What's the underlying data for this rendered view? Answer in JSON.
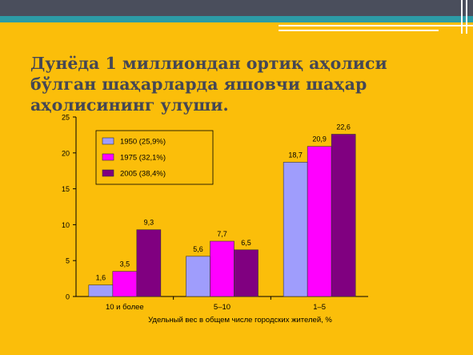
{
  "slide": {
    "title_lines": [
      "Дунёда 1 миллиондан ортиқ аҳолиси",
      "бўлган шаҳарларда яшовчи шаҳар",
      "аҳолисининг улуши."
    ]
  },
  "colors": {
    "background": "#fbbe0a",
    "topbar": "#4a4e5c",
    "accent": "#2c9ba6",
    "title": "#454754"
  },
  "chart_data": {
    "type": "bar",
    "categories": [
      "10 и более",
      "5–10",
      "1–5"
    ],
    "series": [
      {
        "name": "1950 (25,9%)",
        "values": [
          1.6,
          5.6,
          18.7
        ],
        "labels": [
          "1,6",
          "5,6",
          "18,7"
        ],
        "color": "#9f9dfc"
      },
      {
        "name": "1975 (32,1%)",
        "values": [
          3.5,
          7.7,
          20.9
        ],
        "labels": [
          "3,5",
          "7,7",
          "20,9"
        ],
        "color": "#ff00ff"
      },
      {
        "name": "2005 (38,4%)",
        "values": [
          9.3,
          6.5,
          22.6
        ],
        "labels": [
          "9,3",
          "6,5",
          "22,6"
        ],
        "color": "#800080"
      }
    ],
    "y_ticks": [
      "0",
      "5",
      "10",
      "15",
      "20",
      "25"
    ],
    "ylim": [
      0,
      25
    ],
    "xlabel": "Удельный вес в общем числе городских жителей, %",
    "ylabel": "",
    "title": "",
    "grid": false,
    "legend_position": "top-left"
  }
}
